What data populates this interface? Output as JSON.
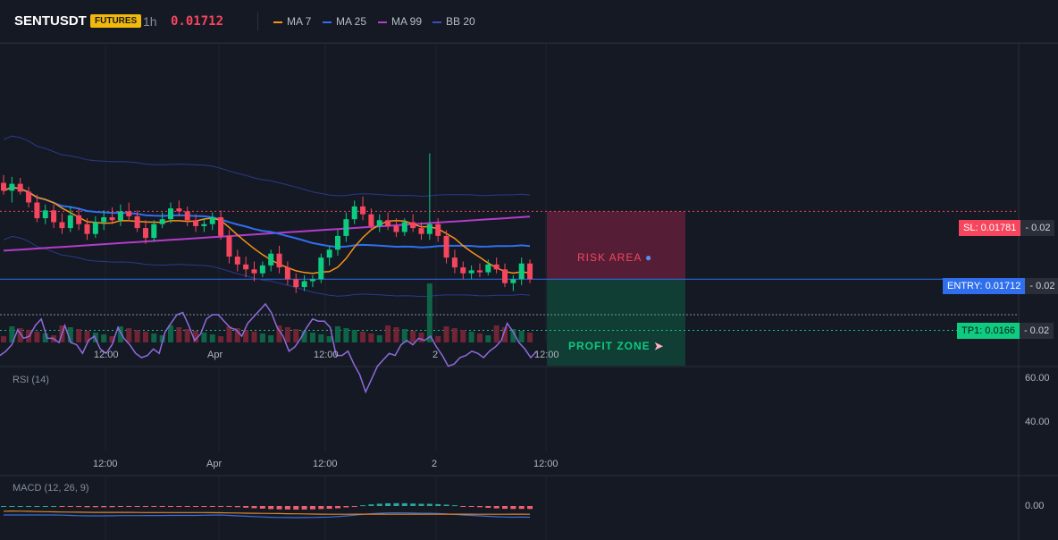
{
  "header": {
    "symbol": "SENTUSDT",
    "badge": "FUTURES",
    "timeframe": "1h",
    "price": "0.01712",
    "indicators": [
      {
        "label": "MA 7",
        "color": "#f7931a"
      },
      {
        "label": "MA 25",
        "color": "#2f6fed"
      },
      {
        "label": "MA 99",
        "color": "#b43cc9"
      },
      {
        "label": "BB 20",
        "color": "#2b3a8a"
      }
    ]
  },
  "trade": {
    "sl_label": "SL: 0.01781",
    "sl_value": "- 0.02",
    "entry_label": "ENTRY: 0.01712",
    "entry_value": "- 0.02",
    "tp_label": "TP1: 0.0166",
    "tp_value": "- 0.02",
    "risk_text": "RISK AREA",
    "profit_text": "PROFIT ZONE",
    "colors": {
      "sl": "#f6465d",
      "entry": "#2f6fed",
      "tp": "#0ecb81"
    }
  },
  "main_time_axis": [
    "12:00",
    "Apr",
    "12:00",
    "2",
    "12:00"
  ],
  "rsi": {
    "label": "RSI (14)",
    "ticks": [
      "60.00",
      "40.00"
    ],
    "time_axis": [
      "12:00",
      "Apr",
      "12:00",
      "2",
      "12:00"
    ],
    "values": [
      49,
      47,
      44,
      37,
      41,
      40,
      35,
      32,
      41,
      41,
      43,
      35,
      43,
      44,
      48,
      42,
      40,
      46,
      48,
      44,
      36,
      41,
      44,
      48,
      50,
      49,
      46,
      48,
      38,
      34,
      30,
      29,
      35,
      42,
      39,
      32,
      30,
      30,
      33,
      36,
      37,
      40,
      34,
      31,
      28,
      25,
      29,
      36,
      40,
      47,
      45,
      41,
      36,
      32,
      33,
      33,
      36,
      49,
      49,
      47,
      53,
      58,
      66,
      60,
      54,
      51,
      48,
      49,
      44,
      42,
      44,
      41,
      42,
      40,
      45,
      49,
      54,
      53,
      50,
      49,
      47,
      48,
      50,
      47,
      45,
      42,
      34,
      38,
      43,
      46,
      50,
      47
    ]
  },
  "macd": {
    "label": "MACD (12, 26, 9)",
    "tick": "0.00"
  },
  "chart_data": {
    "type": "candlestick",
    "symbol": "SENTUSDT",
    "interval": "1h",
    "last_price": 0.01712,
    "candles_ohlc": [
      [
        0.0181,
        0.01818,
        0.01798,
        0.01802
      ],
      [
        0.01802,
        0.01816,
        0.0179,
        0.01809
      ],
      [
        0.01809,
        0.01815,
        0.01798,
        0.01801
      ],
      [
        0.01801,
        0.01806,
        0.01785,
        0.0179
      ],
      [
        0.0179,
        0.01798,
        0.0177,
        0.01774
      ],
      [
        0.01774,
        0.01788,
        0.01768,
        0.01782
      ],
      [
        0.01782,
        0.01788,
        0.01764,
        0.0177
      ],
      [
        0.0177,
        0.01779,
        0.01758,
        0.01764
      ],
      [
        0.01764,
        0.01786,
        0.0176,
        0.01777
      ],
      [
        0.01777,
        0.01784,
        0.01762,
        0.01768
      ],
      [
        0.01768,
        0.01774,
        0.01752,
        0.01758
      ],
      [
        0.01758,
        0.01776,
        0.01754,
        0.0177
      ],
      [
        0.0177,
        0.01782,
        0.01762,
        0.01775
      ],
      [
        0.01775,
        0.01785,
        0.01768,
        0.01772
      ],
      [
        0.01772,
        0.01788,
        0.01766,
        0.01781
      ],
      [
        0.01781,
        0.0179,
        0.01771,
        0.01776
      ],
      [
        0.01776,
        0.01782,
        0.0176,
        0.01764
      ],
      [
        0.01764,
        0.01772,
        0.01748,
        0.01754
      ],
      [
        0.01754,
        0.01772,
        0.0175,
        0.01768
      ],
      [
        0.01768,
        0.0178,
        0.01764,
        0.01773
      ],
      [
        0.01773,
        0.0179,
        0.01769,
        0.01784
      ],
      [
        0.01784,
        0.01792,
        0.01776,
        0.01781
      ],
      [
        0.01781,
        0.01786,
        0.01766,
        0.01772
      ],
      [
        0.01772,
        0.01778,
        0.0176,
        0.01766
      ],
      [
        0.01766,
        0.01774,
        0.0176,
        0.01768
      ],
      [
        0.01768,
        0.0178,
        0.01762,
        0.01775
      ],
      [
        0.01775,
        0.01782,
        0.01752,
        0.01756
      ],
      [
        0.01756,
        0.01762,
        0.01728,
        0.01735
      ],
      [
        0.01735,
        0.01742,
        0.0172,
        0.01727
      ],
      [
        0.01727,
        0.01735,
        0.01714,
        0.01722
      ],
      [
        0.01722,
        0.0173,
        0.0171,
        0.01718
      ],
      [
        0.01718,
        0.0173,
        0.01714,
        0.01726
      ],
      [
        0.01726,
        0.01742,
        0.0172,
        0.01738
      ],
      [
        0.01738,
        0.01746,
        0.01718,
        0.01724
      ],
      [
        0.01724,
        0.0173,
        0.01706,
        0.01712
      ],
      [
        0.01712,
        0.01718,
        0.01698,
        0.01704
      ],
      [
        0.01704,
        0.01716,
        0.017,
        0.0171
      ],
      [
        0.0171,
        0.01716,
        0.01704,
        0.01712
      ],
      [
        0.01712,
        0.01738,
        0.01708,
        0.01734
      ],
      [
        0.01734,
        0.01746,
        0.01726,
        0.01742
      ],
      [
        0.01742,
        0.01762,
        0.01736,
        0.01756
      ],
      [
        0.01756,
        0.0178,
        0.0175,
        0.01773
      ],
      [
        0.01773,
        0.01792,
        0.01768,
        0.01786
      ],
      [
        0.01786,
        0.01796,
        0.01772,
        0.01778
      ],
      [
        0.01778,
        0.01784,
        0.01762,
        0.01766
      ],
      [
        0.01766,
        0.01778,
        0.0176,
        0.01772
      ],
      [
        0.01772,
        0.0178,
        0.01762,
        0.01766
      ],
      [
        0.01766,
        0.01774,
        0.01755,
        0.0176
      ],
      [
        0.0176,
        0.01774,
        0.01756,
        0.0177
      ],
      [
        0.0177,
        0.01778,
        0.0176,
        0.01764
      ],
      [
        0.01764,
        0.0177,
        0.01752,
        0.01758
      ],
      [
        0.01758,
        0.0184,
        0.01752,
        0.01768
      ],
      [
        0.01768,
        0.01774,
        0.0175,
        0.01756
      ],
      [
        0.01756,
        0.01762,
        0.01728,
        0.01734
      ],
      [
        0.01734,
        0.01742,
        0.01718,
        0.01724
      ],
      [
        0.01724,
        0.0173,
        0.01712,
        0.01718
      ],
      [
        0.01718,
        0.01726,
        0.01712,
        0.01721
      ],
      [
        0.01721,
        0.01728,
        0.01714,
        0.01719
      ],
      [
        0.01719,
        0.01732,
        0.01716,
        0.01727
      ],
      [
        0.01727,
        0.01734,
        0.01718,
        0.01722
      ],
      [
        0.01722,
        0.01728,
        0.01704,
        0.01708
      ],
      [
        0.01708,
        0.01716,
        0.017,
        0.01712
      ],
      [
        0.01712,
        0.01734,
        0.01706,
        0.01728
      ],
      [
        0.01728,
        0.01732,
        0.01708,
        0.01712
      ]
    ],
    "volume_colors_by_candle": "green if close>=open else red",
    "moving_averages": [
      "MA 7",
      "MA 25",
      "MA 99"
    ],
    "bollinger_bands": "BB 20",
    "levels": {
      "stop_loss": 0.01781,
      "entry": 0.01712,
      "take_profit_1": 0.0166
    },
    "xlabel": "",
    "ylabel": ""
  }
}
